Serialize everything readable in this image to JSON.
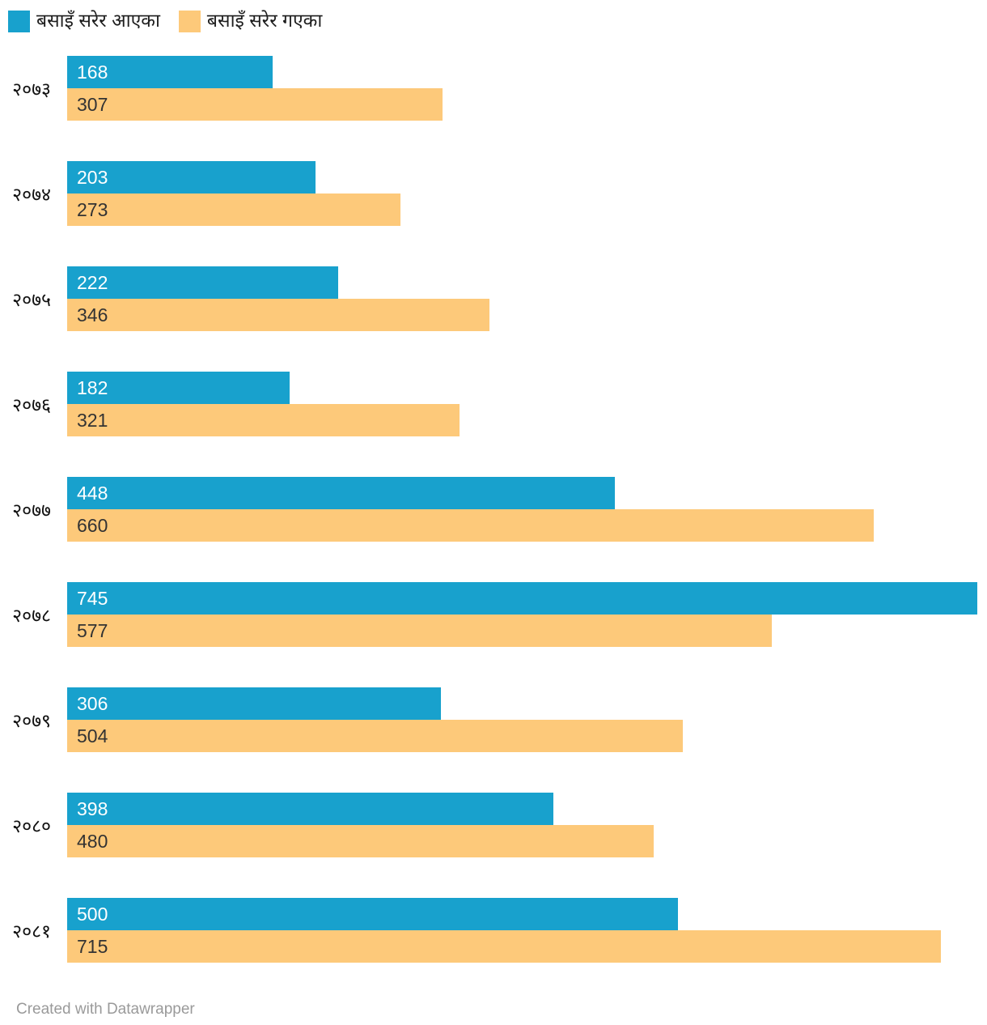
{
  "colors": {
    "migrated_in": "#18a1cd",
    "migrated_out": "#fdc97a",
    "value_text_in": "#ffffff",
    "value_text_out": "#333333",
    "year_label_text": "#111111",
    "attribution_text": "#9a9a9a"
  },
  "legend": {
    "items": [
      {
        "label": "बसाइँ सरेर आएका",
        "color": "#18a1cd"
      },
      {
        "label": "बसाइँ सरेर गएका",
        "color": "#fdc97a"
      }
    ]
  },
  "chart_data": {
    "type": "bar",
    "orientation": "horizontal",
    "grouped": true,
    "title": "",
    "xlabel": "",
    "ylabel": "",
    "grid": false,
    "legend_position": "top-left",
    "value_labels": "inside-start",
    "xlim": [
      0,
      745
    ],
    "categories": [
      "२०७३",
      "२०७४",
      "२०७५",
      "२०७६",
      "२०७७",
      "२०७८",
      "२०७९",
      "२०८०",
      "२०८१"
    ],
    "series": [
      {
        "name": "बसाइँ सरेर आएका",
        "color": "#18a1cd",
        "values": [
          168,
          203,
          222,
          182,
          448,
          745,
          306,
          398,
          500
        ]
      },
      {
        "name": "बसाइँ सरेर गएका",
        "color": "#fdc97a",
        "values": [
          307,
          273,
          346,
          321,
          660,
          577,
          504,
          480,
          715
        ]
      }
    ]
  },
  "footer": {
    "attribution": "Created with Datawrapper"
  }
}
